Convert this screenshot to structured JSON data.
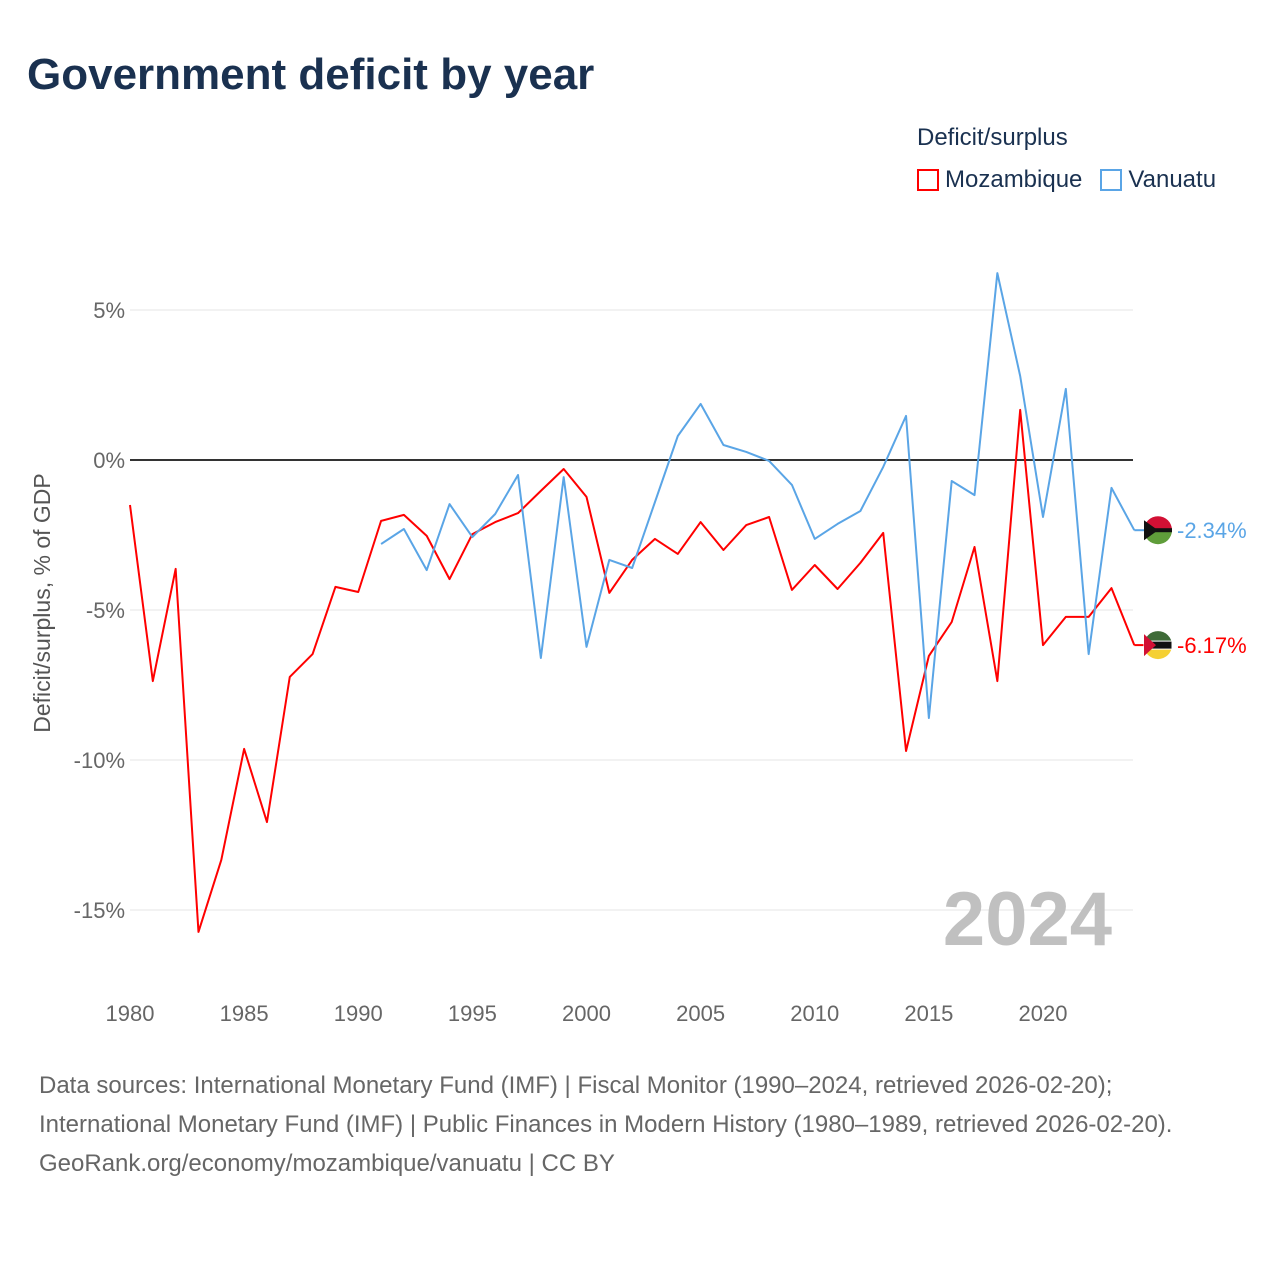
{
  "title": "Government deficit by year",
  "legend": {
    "title": "Deficit/surplus",
    "items": [
      {
        "name": "Mozambique",
        "color": "#ff0000"
      },
      {
        "name": "Vanuatu",
        "color": "#5aa5e6"
      }
    ]
  },
  "watermark_year": "2024",
  "chart_data": {
    "type": "line",
    "title": "Government deficit by year",
    "xlabel": "",
    "ylabel": "Deficit/surplus, % of GDP",
    "xlim": [
      1980,
      2024
    ],
    "ylim": [
      -17,
      7
    ],
    "x_ticks": [
      1980,
      1985,
      1990,
      1995,
      2000,
      2005,
      2010,
      2015,
      2020
    ],
    "y_ticks": [
      {
        "value": 5,
        "label": "5%"
      },
      {
        "value": 0,
        "label": "0%"
      },
      {
        "value": -5,
        "label": "-5%"
      },
      {
        "value": -10,
        "label": "-10%"
      },
      {
        "value": -15,
        "label": "-15%"
      }
    ],
    "grid": true,
    "legend_position": "top-right",
    "series": [
      {
        "name": "Mozambique",
        "color": "#ff0000",
        "end_label": "-6.17%",
        "start_year": 1980,
        "values": [
          -1.5,
          -7.37,
          -3.63,
          -15.73,
          -13.33,
          -9.63,
          -12.07,
          -7.23,
          -6.47,
          -4.23,
          -4.4,
          -2.03,
          -1.83,
          -2.53,
          -3.97,
          -2.47,
          -2.07,
          -1.77,
          -1.03,
          -0.3,
          -1.23,
          -4.43,
          -3.33,
          -2.63,
          -3.13,
          -2.07,
          -3.0,
          -2.17,
          -1.9,
          -4.33,
          -3.5,
          -4.3,
          -3.43,
          -2.43,
          -9.7,
          -6.53,
          -5.4,
          -2.9,
          -7.37,
          1.67,
          -6.17,
          -5.23,
          -5.23,
          -4.27,
          -6.17
        ]
      },
      {
        "name": "Vanuatu",
        "color": "#5aa5e6",
        "end_label": "-2.34%",
        "start_year": 1991,
        "values": [
          -2.8,
          -2.3,
          -3.67,
          -1.47,
          -2.57,
          -1.8,
          -0.5,
          -6.6,
          -0.57,
          -6.23,
          -3.33,
          -3.6,
          -1.4,
          0.8,
          1.87,
          0.5,
          0.27,
          -0.03,
          -0.83,
          -2.63,
          -2.13,
          -1.7,
          -0.23,
          1.47,
          -8.6,
          -0.7,
          -1.17,
          6.23,
          2.8,
          -1.9,
          2.37,
          -6.47,
          -0.93,
          -2.34
        ]
      }
    ]
  },
  "footer": {
    "sources": "Data sources: International Monetary Fund (IMF) | Fiscal Monitor (1990–2024, retrieved 2026-02-20); International Monetary Fund (IMF) | Public Finances in Modern History (1980–1989, retrieved 2026-02-20).",
    "credit": "GeoRank.org/economy/mozambique/vanuatu | CC BY"
  }
}
